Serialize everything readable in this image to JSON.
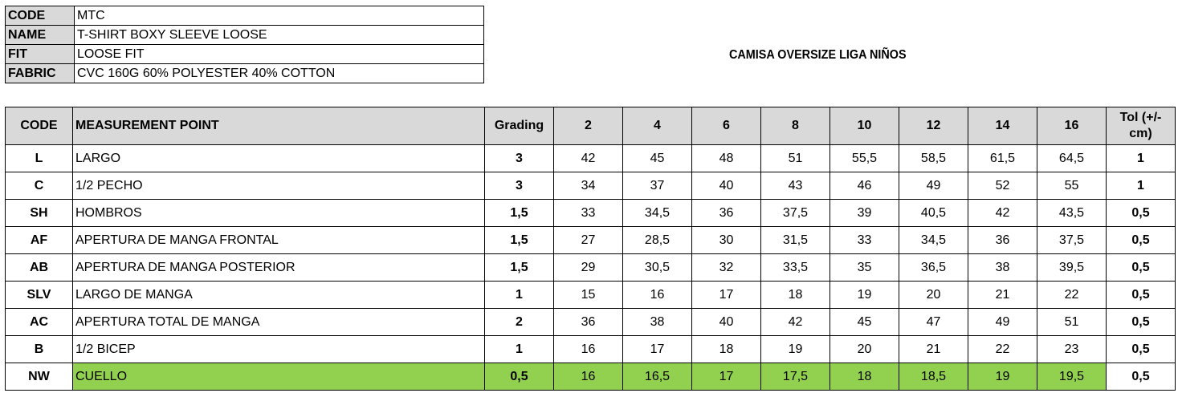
{
  "info": [
    {
      "label": "CODE",
      "value": "MTC"
    },
    {
      "label": "NAME",
      "value": "T-SHIRT BOXY SLEEVE LOOSE"
    },
    {
      "label": "FIT",
      "value": "LOOSE FIT"
    },
    {
      "label": "FABRIC",
      "value": "CVC 160G 60% POLYESTER 40% COTTON"
    }
  ],
  "title": "CAMISA OVERSIZE LIGA NIÑOS",
  "table": {
    "headers": {
      "code": "CODE",
      "point": "MEASUREMENT POINT",
      "grading": "Grading",
      "sizes": [
        "2",
        "4",
        "6",
        "8",
        "10",
        "12",
        "14",
        "16"
      ],
      "tol_line1": "Tol (+/-",
      "tol_line2": "cm)"
    },
    "rows": [
      {
        "code": "L",
        "name": "LARGO",
        "grading": "3",
        "values": [
          "42",
          "45",
          "48",
          "51",
          "55,5",
          "58,5",
          "61,5",
          "64,5"
        ],
        "tol": "1"
      },
      {
        "code": "C",
        "name": "1/2 PECHO",
        "grading": "3",
        "values": [
          "34",
          "37",
          "40",
          "43",
          "46",
          "49",
          "52",
          "55"
        ],
        "tol": "1"
      },
      {
        "code": "SH",
        "name": "HOMBROS",
        "grading": "1,5",
        "values": [
          "33",
          "34,5",
          "36",
          "37,5",
          "39",
          "40,5",
          "42",
          "43,5"
        ],
        "tol": "0,5"
      },
      {
        "code": "AF",
        "name": "APERTURA DE MANGA FRONTAL",
        "grading": "1,5",
        "values": [
          "27",
          "28,5",
          "30",
          "31,5",
          "33",
          "34,5",
          "36",
          "37,5"
        ],
        "tol": "0,5"
      },
      {
        "code": "AB",
        "name": "APERTURA DE MANGA POSTERIOR",
        "grading": "1,5",
        "values": [
          "29",
          "30,5",
          "32",
          "33,5",
          "35",
          "36,5",
          "38",
          "39,5"
        ],
        "tol": "0,5"
      },
      {
        "code": "SLV",
        "name": "LARGO DE MANGA",
        "grading": "1",
        "values": [
          "15",
          "16",
          "17",
          "18",
          "19",
          "20",
          "21",
          "22"
        ],
        "tol": "0,5"
      },
      {
        "code": "AC",
        "name": "APERTURA TOTAL DE MANGA",
        "grading": "2",
        "values": [
          "36",
          "38",
          "40",
          "42",
          "45",
          "47",
          "49",
          "51"
        ],
        "tol": "0,5"
      },
      {
        "code": "B",
        "name": "1/2 BICEP",
        "grading": "1",
        "values": [
          "16",
          "17",
          "18",
          "19",
          "20",
          "21",
          "22",
          "23"
        ],
        "tol": "0,5"
      },
      {
        "code": "NW",
        "name": "CUELLO",
        "grading": "0,5",
        "values": [
          "16",
          "16,5",
          "17",
          "17,5",
          "18",
          "18,5",
          "19",
          "19,5"
        ],
        "tol": "0,5",
        "highlight": true
      }
    ]
  },
  "colors": {
    "header_bg": "#d9d9d9",
    "highlight": "#92d050"
  }
}
